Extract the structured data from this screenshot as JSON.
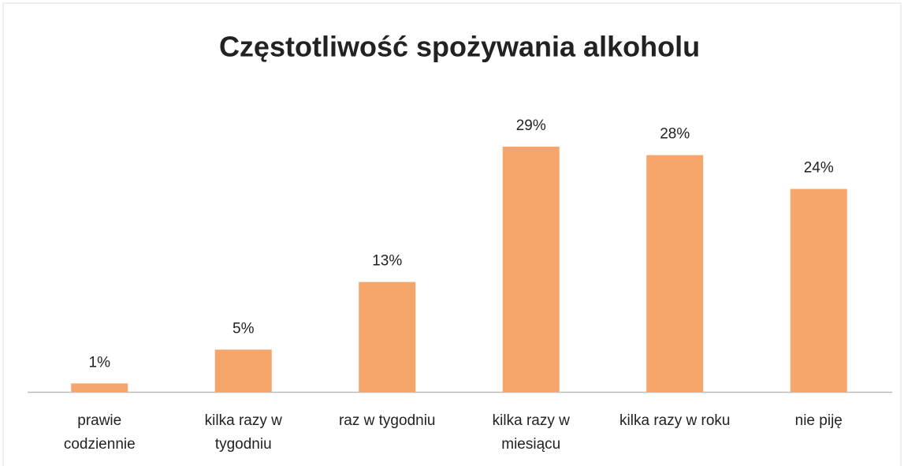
{
  "chart_data": {
    "type": "bar",
    "title": "Częstotliwość spożywania alkoholu",
    "categories": [
      "prawie codziennie",
      "kilka razy w tygodniu",
      "raz w tygodniu",
      "kilka razy w miesiącu",
      "kilka razy w roku",
      "nie piję"
    ],
    "values": [
      1,
      5,
      13,
      29,
      28,
      24
    ],
    "value_labels": [
      "1%",
      "5%",
      "13%",
      "29%",
      "28%",
      "24%"
    ],
    "color": "#f7a66b"
  }
}
